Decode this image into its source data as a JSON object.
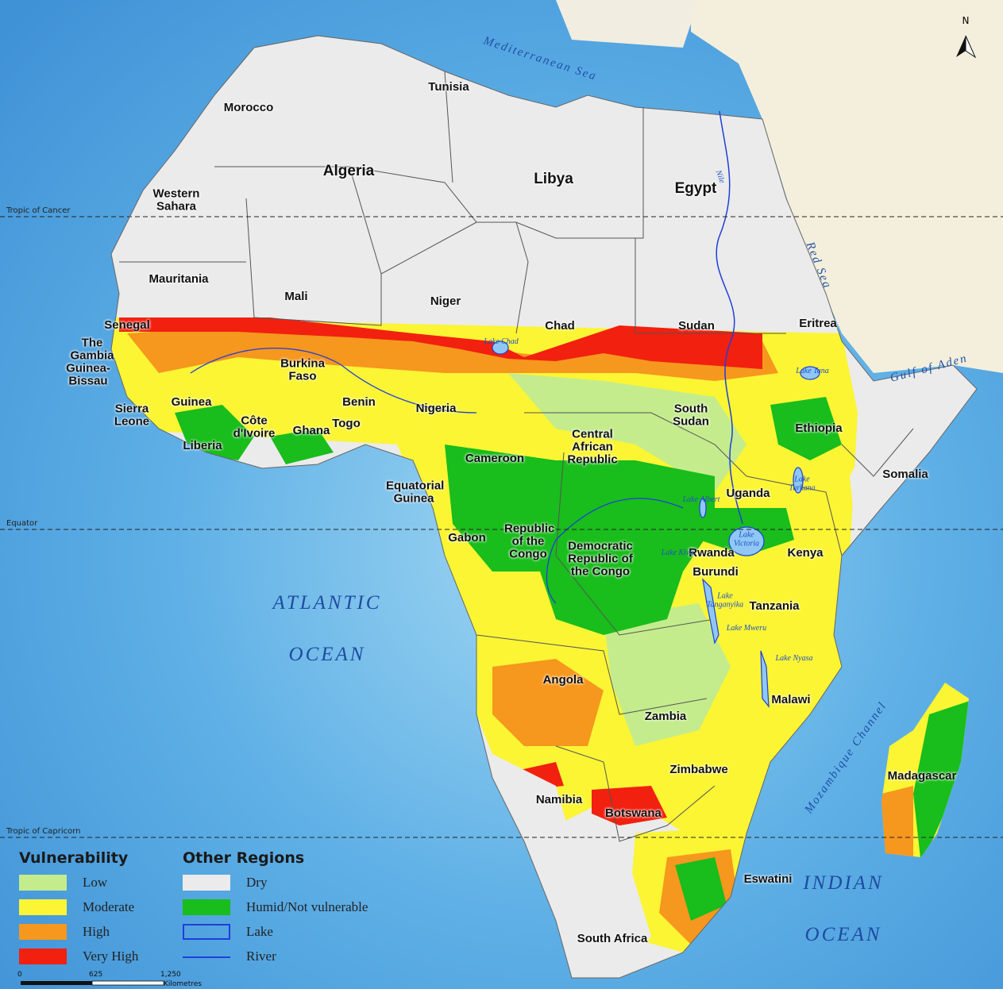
{
  "compass": "N",
  "seas": [
    "Mediterranean Sea",
    "Red Sea",
    "Gulf of Aden",
    "ATLANTIC OCEAN",
    "INDIAN OCEAN",
    "Mozambique Channel"
  ],
  "countries": [
    "Morocco",
    "Algeria",
    "Tunisia",
    "Libya",
    "Egypt",
    "Western Sahara",
    "Mauritania",
    "Mali",
    "Niger",
    "Chad",
    "Sudan",
    "Eritrea",
    "Senegal",
    "The Gambia",
    "Guinea-Bissau",
    "Guinea",
    "Sierra Leone",
    "Liberia",
    "Côte d'Ivoire",
    "Burkina Faso",
    "Ghana",
    "Togo",
    "Benin",
    "Nigeria",
    "Cameroon",
    "Central African Republic",
    "South Sudan",
    "Ethiopia",
    "Somalia",
    "Uganda",
    "Kenya",
    "Equatorial Guinea",
    "Gabon",
    "Republic of the Congo",
    "Democratic Republic of the Congo",
    "Rwanda",
    "Burundi",
    "Tanzania",
    "Angola",
    "Zambia",
    "Malawi",
    "Zimbabwe",
    "Namibia",
    "Botswana",
    "Madagascar",
    "Eswatini",
    "South Africa"
  ],
  "lakes": [
    "Lake Chad",
    "Lake Tana",
    "Lake Turkana",
    "Lake Albert",
    "Lake Victoria",
    "Lake Kivu",
    "Lake Tanganyika",
    "Lake Mweru",
    "Lake Nyasa"
  ],
  "river": "Nile",
  "reference_lines": [
    "Tropic of Cancer",
    "Equator",
    "Tropic of Capricorn"
  ],
  "legend": {
    "vulnerability": {
      "title": "Vulnerability",
      "items": [
        {
          "label": "Low",
          "color": "#c4ec8c"
        },
        {
          "label": "Moderate",
          "color": "#fbf534"
        },
        {
          "label": "High",
          "color": "#f6971e"
        },
        {
          "label": "Very High",
          "color": "#f2200f"
        }
      ]
    },
    "other": {
      "title": "Other Regions",
      "items": [
        {
          "label": "Dry",
          "color": "#ebebeb"
        },
        {
          "label": "Humid/Not vulnerable",
          "color": "#19bd1c"
        },
        {
          "label": "Lake",
          "color": "#1f3fd8"
        },
        {
          "label": "River",
          "color": "#1f3fd8"
        }
      ]
    }
  },
  "scale": {
    "ticks": [
      "0",
      "625",
      "1,250"
    ],
    "unit": "Kilometres"
  }
}
